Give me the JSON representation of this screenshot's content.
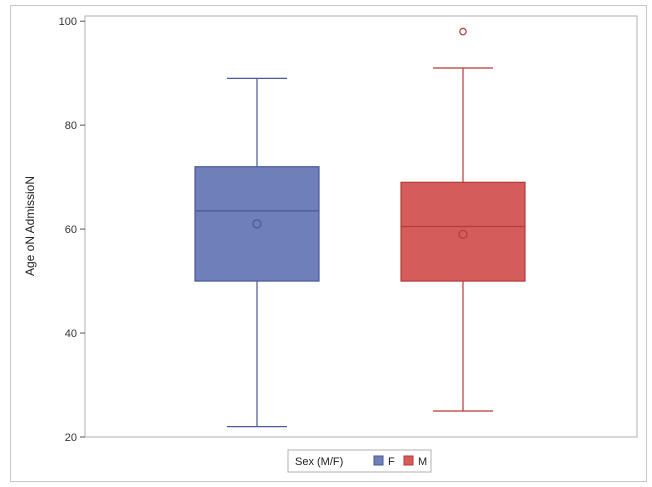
{
  "chart_data": {
    "type": "boxplot",
    "title": "",
    "xlabel": "",
    "ylabel": "Age oN AdmissioN",
    "ylim": [
      20,
      101
    ],
    "yticks": [
      20,
      40,
      60,
      80,
      100
    ],
    "grid": false,
    "legend": {
      "title": "Sex (M/F)",
      "placement": "bottom"
    },
    "series": [
      {
        "name": "F",
        "color": "#6f7fb9",
        "stroke": "#4a5a9a",
        "min": 22,
        "q1": 50,
        "median": 63.5,
        "q3": 72,
        "max": 89,
        "mean": 61,
        "outliers": []
      },
      {
        "name": "M",
        "color": "#d45d5b",
        "stroke": "#b83a38",
        "min": 25,
        "q1": 50,
        "median": 60.5,
        "q3": 69,
        "max": 91,
        "mean": 59,
        "outliers": [
          98
        ]
      }
    ]
  }
}
